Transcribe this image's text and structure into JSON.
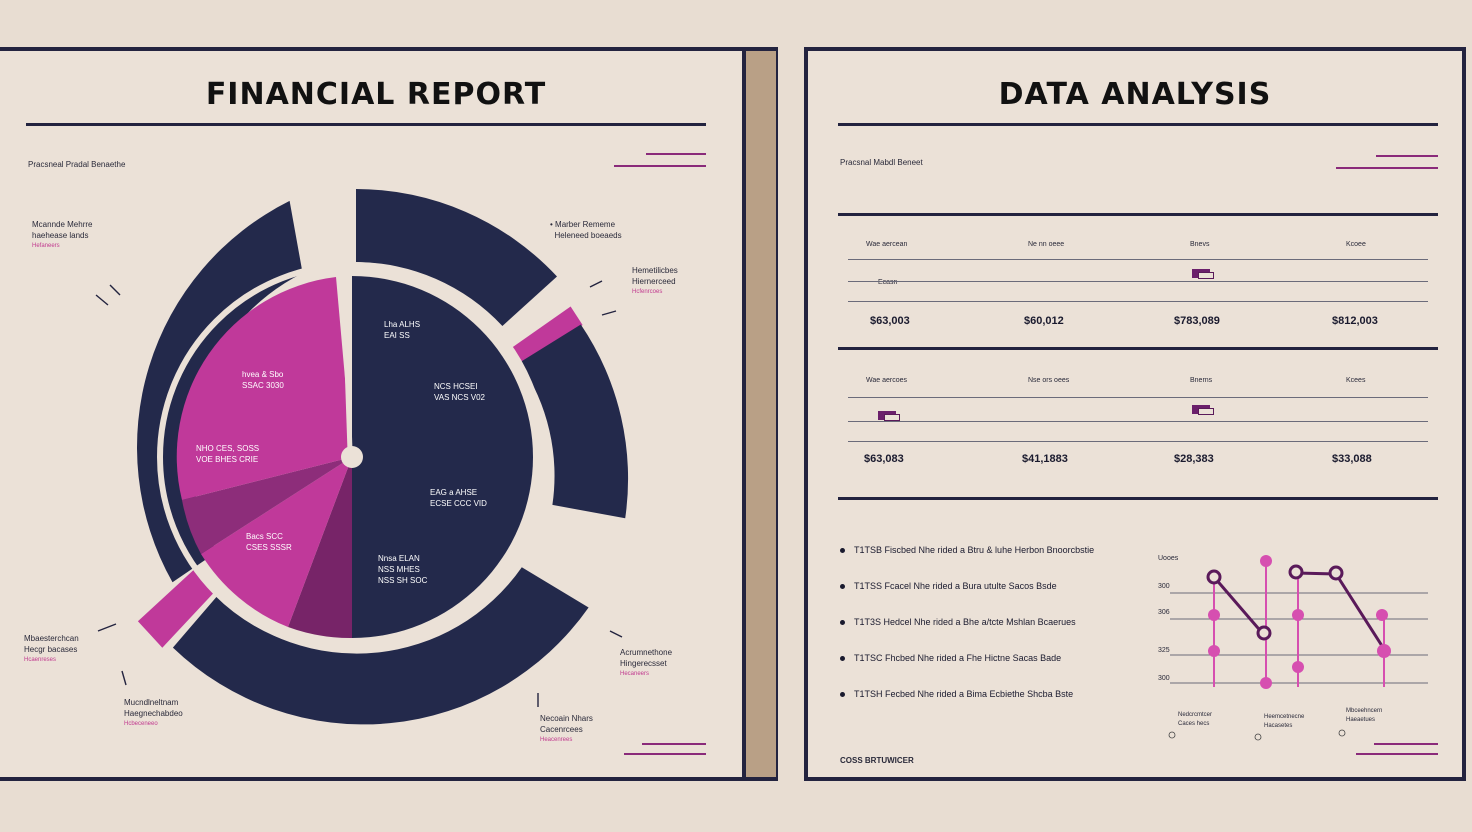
{
  "left": {
    "title": "FINANCIAL REPORT",
    "subtitle": "Pracsneal Pradal Benaethe",
    "callouts": [
      {
        "title": "Mcannde Mehrre",
        "line2": "haehease lands",
        "pink": "Hefaneers"
      },
      {
        "title": "Marber Rememe",
        "line2": "Heleneed boeaeds",
        "pink": ""
      },
      {
        "title": "Hemetilicbes",
        "line2": "Hiernerceed",
        "pink": "Hcfenrcoes"
      },
      {
        "title": "Mbaesterchcan",
        "line2": "Hecgr bacases",
        "pink": "Hcaenreses"
      },
      {
        "title": "Acrumnethone",
        "line2": "Hingerecsset",
        "pink": "Hecaneers"
      },
      {
        "title": "Mucndlneltnam",
        "line2": "Haegnechabdeo",
        "pink": "Hcbeceneeo"
      },
      {
        "title": "Necoain Nhars",
        "line2": "Cacenrcees",
        "pink": "Heacenrees"
      }
    ],
    "pie_labels": [
      {
        "l1": "Lha ALHS",
        "l2": "EAI SS"
      },
      {
        "l1": "NCS HCSEI",
        "l2": "VAS NCS V02"
      },
      {
        "l1": "EAG a AHSE",
        "l2": "ECSE CCC VID"
      },
      {
        "l1": "Nnsa ELAN",
        "l2": "NSS MHES",
        "l3": "NSS SH SOC"
      },
      {
        "l1": "hvea & Sbo",
        "l2": "SSAC 3030"
      },
      {
        "l1": "NHO CES, SOSS",
        "l2": "VOE BHES CRIE"
      },
      {
        "l1": "Bacs SCC",
        "l2": "CSES SSSR"
      }
    ]
  },
  "right": {
    "title": "DATA ANALYSIS",
    "subtitle": "Pracsnal Mabdl Beneet",
    "table1": {
      "headers": [
        "Wae aercean",
        "Ne nn oeee",
        "Bnevs",
        "Kcoee"
      ],
      "note": "Ecasn",
      "values": [
        "$63,003",
        "$60,012",
        "$783,089",
        "$812,003"
      ]
    },
    "table2": {
      "headers": [
        "Wae aercoes",
        "Nse ors oees",
        "Bnerns",
        "Kcees"
      ],
      "values": [
        "$63,083",
        "$41,1883",
        "$28,383",
        "$33,088"
      ]
    },
    "bullets": [
      "T1TSB Fiscbed Nhe rided a Btru & luhe Herbon Bnoorcbstie",
      "T1TSS Fcacel Nhe rided a Bura utulte Sacos Bsde",
      "T1T3S Hedcel Nhe rided a Bhe a/tcte Mshlan Bcaerues",
      "T1TSC Fhcbed Nhe rided a Fhe Hictne Sacas Bade",
      "T1TSH Fecbed Nhe rided a Bima Ecbiethe Shcba Bste"
    ],
    "chart_ticks": [
      "Uooes",
      "300",
      "306",
      "325",
      "300"
    ],
    "chart_captions": [
      {
        "l1": "Nedcrcmtcer",
        "l2": "Caces hecs"
      },
      {
        "l1": "Heemcetnecne",
        "l2": "Hacasetes"
      },
      {
        "l1": "Mbceehncern",
        "l2": "Haeaetues"
      }
    ],
    "footer": "COSS BRTUWICER",
    "colors": {
      "navy": "#23294b",
      "magenta": "#c0399a",
      "plum": "#6b1f6b",
      "orchid": "#d64fb0"
    }
  }
}
